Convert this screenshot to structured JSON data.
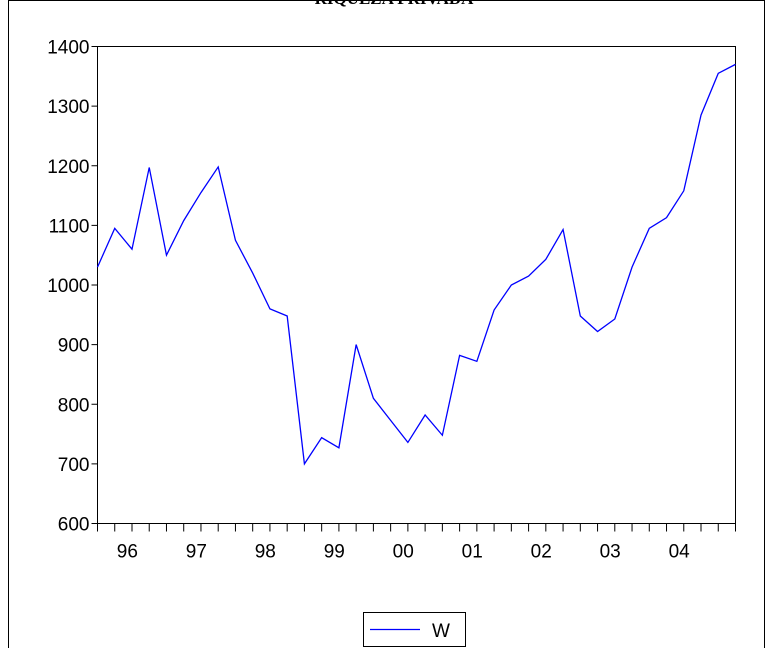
{
  "chart_data": {
    "type": "line",
    "title": "RIQUEZA PRIVADA",
    "categories": [
      "96",
      null,
      null,
      null,
      "97",
      null,
      null,
      null,
      "98",
      null,
      null,
      null,
      "99",
      null,
      null,
      null,
      "00",
      null,
      null,
      null,
      "01",
      null,
      null,
      null,
      "02",
      null,
      null,
      null,
      "03",
      null,
      null,
      null,
      "04",
      null,
      null,
      null,
      null,
      null
    ],
    "series": [
      {
        "name": "W",
        "color": "#0000ff",
        "values": [
          1030,
          1095,
          1060,
          1197,
          1050,
          1108,
          1155,
          1198,
          1075,
          1020,
          960,
          948,
          700,
          744,
          727,
          900,
          810,
          773,
          736,
          782,
          748,
          882,
          872,
          958,
          1000,
          1015,
          1043,
          1093,
          948,
          922,
          943,
          1030,
          1095,
          1113,
          1158,
          1285,
          1355,
          1370
        ]
      }
    ],
    "ylim": [
      600,
      1400
    ],
    "yticks": [
      600,
      700,
      800,
      900,
      1000,
      1100,
      1200,
      1300,
      1400
    ],
    "legend": "bottom"
  }
}
